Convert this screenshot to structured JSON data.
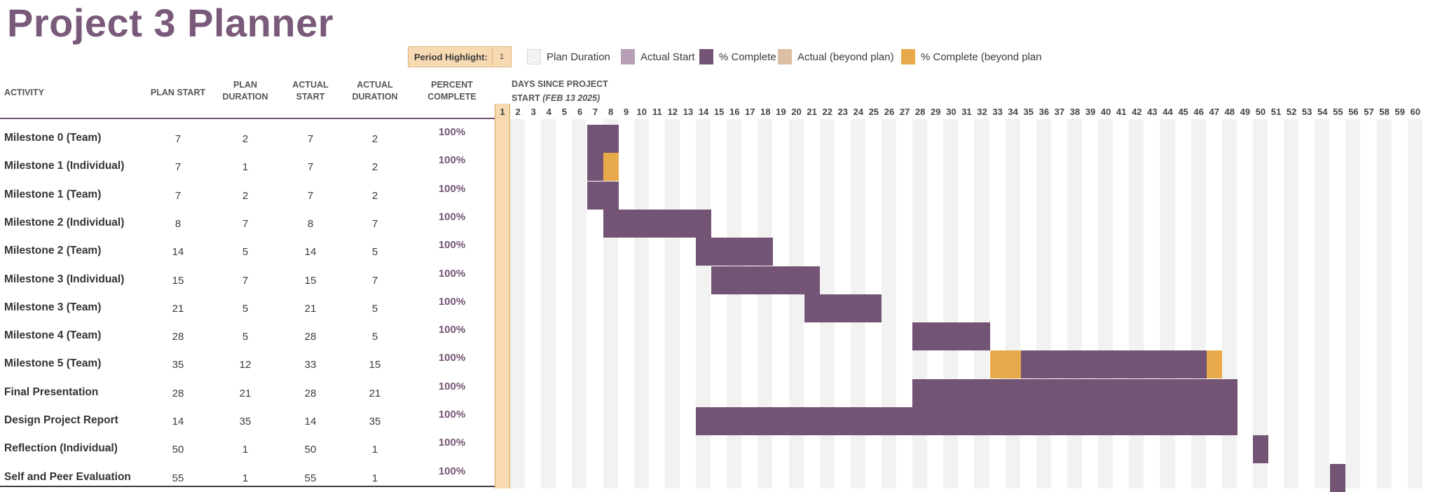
{
  "title": "Project 3 Planner",
  "period_highlight": {
    "label": "Period Highlight:",
    "value": "1"
  },
  "legend": [
    {
      "label": "Plan Duration",
      "swatch": "plan"
    },
    {
      "label": "Actual Start",
      "swatch": "actual"
    },
    {
      "label": "% Complete",
      "swatch": "complete"
    },
    {
      "label": "Actual (beyond plan)",
      "swatch": "beyond"
    },
    {
      "label": "% Complete (beyond plan",
      "swatch": "complete-beyond"
    }
  ],
  "headers": {
    "activity": "ACTIVITY",
    "plan_start": "PLAN START",
    "plan_duration": [
      "PLAN",
      "DURATION"
    ],
    "actual_start": [
      "ACTUAL",
      "START"
    ],
    "actual_duration": [
      "ACTUAL",
      "DURATION"
    ],
    "percent_complete": [
      "PERCENT",
      "COMPLETE"
    ],
    "days_since": "DAYS SINCE PROJECT",
    "days_since_start": "START",
    "days_since_date": "(FEB 13 2025)"
  },
  "colors": {
    "complete": "#745474",
    "beyond": "#e8a94a",
    "highlight": "#f7d9b2",
    "title": "#7a5a7a"
  },
  "days": [
    1,
    2,
    3,
    4,
    5,
    6,
    7,
    8,
    9,
    10,
    11,
    12,
    13,
    14,
    15,
    16,
    17,
    18,
    19,
    20,
    21,
    22,
    23,
    24,
    25,
    26,
    27,
    28,
    29,
    30,
    31,
    32,
    33,
    34,
    35,
    36,
    37,
    38,
    39,
    40,
    41,
    42,
    43,
    44,
    45,
    46,
    47,
    48,
    49,
    50,
    51,
    52,
    53,
    54,
    55,
    56,
    57,
    58,
    59,
    60
  ],
  "activities": [
    {
      "name": "Milestone 0 (Team)",
      "plan_start": "7",
      "plan_duration": "2",
      "actual_start": "7",
      "actual_duration": "2",
      "percent": "100%",
      "ps": 7,
      "pd": 2,
      "as": 7,
      "ad": 2
    },
    {
      "name": "Milestone 1 (Individual)",
      "plan_start": "7",
      "plan_duration": "1",
      "actual_start": "7",
      "actual_duration": "2",
      "percent": "100%",
      "ps": 7,
      "pd": 1,
      "as": 7,
      "ad": 2
    },
    {
      "name": "Milestone 1 (Team)",
      "plan_start": "7",
      "plan_duration": "2",
      "actual_start": "7",
      "actual_duration": "2",
      "percent": "100%",
      "ps": 7,
      "pd": 2,
      "as": 7,
      "ad": 2
    },
    {
      "name": "Milestone 2 (Individual)",
      "plan_start": "8",
      "plan_duration": "7",
      "actual_start": "8",
      "actual_duration": "7",
      "percent": "100%",
      "ps": 8,
      "pd": 7,
      "as": 8,
      "ad": 7
    },
    {
      "name": "Milestone 2 (Team)",
      "plan_start": "14",
      "plan_duration": "5",
      "actual_start": "14",
      "actual_duration": "5",
      "percent": "100%",
      "ps": 14,
      "pd": 5,
      "as": 14,
      "ad": 5
    },
    {
      "name": "Milestone 3 (Individual)",
      "plan_start": "15",
      "plan_duration": "7",
      "actual_start": "15",
      "actual_duration": "7",
      "percent": "100%",
      "ps": 15,
      "pd": 7,
      "as": 15,
      "ad": 7
    },
    {
      "name": "Milestone 3 (Team)",
      "plan_start": "21",
      "plan_duration": "5",
      "actual_start": "21",
      "actual_duration": "5",
      "percent": "100%",
      "ps": 21,
      "pd": 5,
      "as": 21,
      "ad": 5
    },
    {
      "name": "Milestone 4 (Team)",
      "plan_start": "28",
      "plan_duration": "5",
      "actual_start": "28",
      "actual_duration": "5",
      "percent": "100%",
      "ps": 28,
      "pd": 5,
      "as": 28,
      "ad": 5
    },
    {
      "name": "Milestone 5 (Team)",
      "plan_start": "35",
      "plan_duration": "12",
      "actual_start": "33",
      "actual_duration": "15",
      "percent": "100%",
      "ps": 35,
      "pd": 12,
      "as": 33,
      "ad": 15
    },
    {
      "name": "Final Presentation",
      "plan_start": "28",
      "plan_duration": "21",
      "actual_start": "28",
      "actual_duration": "21",
      "percent": "100%",
      "ps": 28,
      "pd": 21,
      "as": 28,
      "ad": 21
    },
    {
      "name": "Design Project Report",
      "plan_start": "14",
      "plan_duration": "35",
      "actual_start": "14",
      "actual_duration": "35",
      "percent": "100%",
      "ps": 14,
      "pd": 35,
      "as": 14,
      "ad": 35
    },
    {
      "name": "Reflection (Individual)",
      "plan_start": "50",
      "plan_duration": "1",
      "actual_start": "50",
      "actual_duration": "1",
      "percent": "100%",
      "ps": 50,
      "pd": 1,
      "as": 50,
      "ad": 1
    },
    {
      "name": "Self and Peer Evaluation",
      "plan_start": "55",
      "plan_duration": "1",
      "actual_start": "55",
      "actual_duration": "1",
      "percent": "100%",
      "ps": 55,
      "pd": 1,
      "as": 55,
      "ad": 1
    }
  ]
}
